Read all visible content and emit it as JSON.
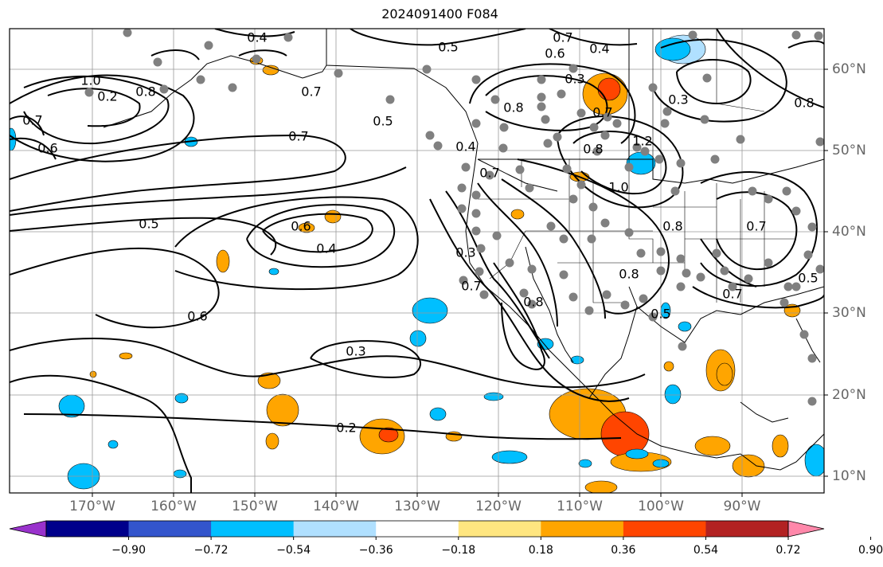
{
  "title": "2024091400 F084",
  "lon_labels": [
    "170°W",
    "160°W",
    "150°W",
    "140°W",
    "130°W",
    "120°W",
    "110°W",
    "100°W",
    "90°W"
  ],
  "lat_labels": [
    "60°N",
    "50°N",
    "40°N",
    "30°N",
    "20°N",
    "10°N"
  ],
  "colorbar": {
    "ticks": [
      "−0.90",
      "−0.72",
      "−0.54",
      "−0.36",
      "−0.18",
      "0.18",
      "0.36",
      "0.54",
      "0.72",
      "0.90"
    ],
    "colors": [
      "#9932cc",
      "#00008b",
      "#3355cc",
      "#00bfff",
      "#b0e0ff",
      "#ffffff",
      "#ffe680",
      "#ffa500",
      "#ff4500",
      "#b22222",
      "#ff88aa"
    ]
  },
  "contour_labels": [
    "0.4",
    "0.7",
    "0.5",
    "0.6",
    "0.4",
    "1.0",
    "0.8",
    "0.2",
    "0.7",
    "0.6",
    "0.7",
    "0.5",
    "0.7",
    "0.4",
    "0.8",
    "0.7",
    "0.3",
    "0.7",
    "0.8",
    "1.2",
    "1.0",
    "0.8",
    "0.5",
    "0.6",
    "0.4",
    "0.7",
    "0.6",
    "0.3",
    "0.3",
    "0.7",
    "0.8",
    "0.8",
    "0.3",
    "0.7",
    "0.5",
    "0.2",
    "0.5",
    "0.8"
  ]
}
